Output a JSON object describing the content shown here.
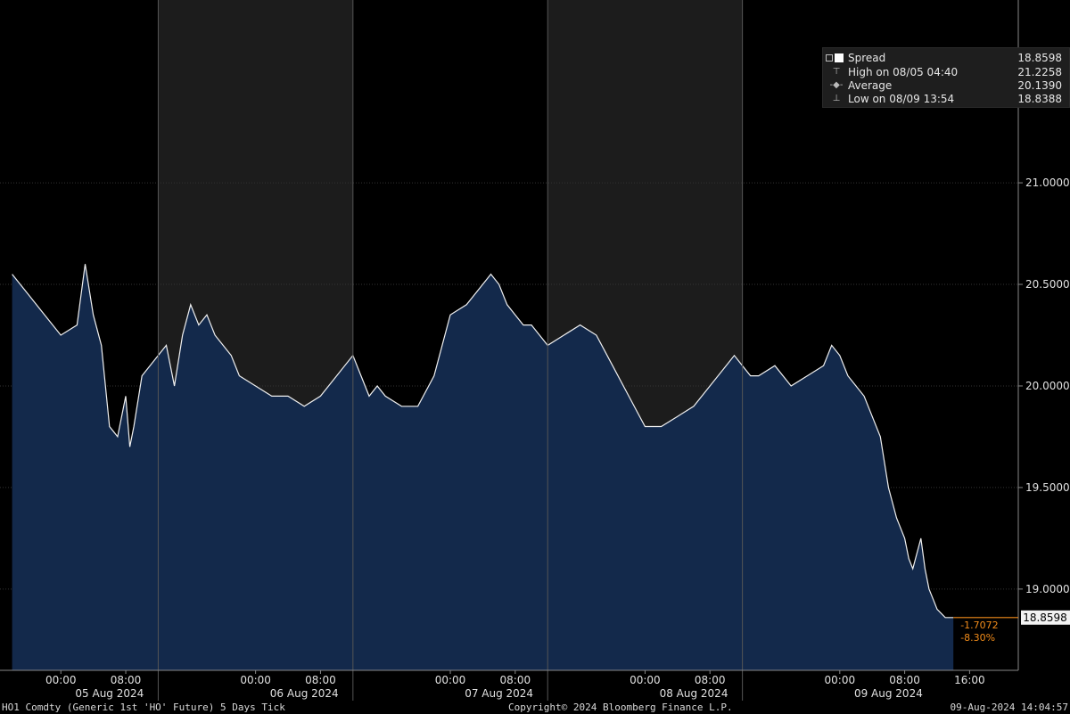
{
  "chart_data": {
    "type": "area",
    "ylim": [
      18.6,
      21.9
    ],
    "y_ticks": [
      "19.0000",
      "19.5000",
      "20.0000",
      "20.5000",
      "21.0000"
    ],
    "y_tick_values": [
      19.0,
      19.5,
      20.0,
      20.5,
      21.0
    ],
    "x_time_labels": [
      "00:00",
      "08:00",
      "00:00",
      "08:00",
      "00:00",
      "08:00",
      "00:00",
      "08:00",
      "00:00",
      "08:00",
      "16:00"
    ],
    "x_time_hours": [
      6,
      14,
      30,
      38,
      54,
      62,
      78,
      86,
      102,
      110,
      118
    ],
    "day_labels": [
      "05 Aug 2024",
      "06 Aug 2024",
      "07 Aug 2024",
      "08 Aug 2024",
      "09 Aug 2024"
    ],
    "day_label_hours": [
      12,
      36,
      60,
      84,
      108
    ],
    "session_breaks_hours": [
      18,
      42,
      66,
      90
    ],
    "series": [
      {
        "name": "Spread",
        "x_hours": [
          0,
          2,
          4,
          6,
          8,
          9,
          10,
          11,
          12,
          13,
          14,
          14.5,
          15,
          16,
          18,
          19,
          20,
          21,
          22,
          23,
          24,
          25,
          26,
          27,
          28,
          30,
          32,
          34,
          36,
          38,
          40,
          42,
          43,
          44,
          45,
          46,
          48,
          50,
          52,
          54,
          56,
          58,
          59,
          60,
          61,
          62,
          63,
          64,
          65,
          66,
          68,
          70,
          72,
          74,
          76,
          78,
          80,
          82,
          84,
          86,
          88,
          89,
          90,
          91,
          92,
          94,
          96,
          98,
          100,
          101,
          102,
          103,
          104,
          105,
          106,
          107,
          108,
          109,
          110,
          110.5,
          111,
          112,
          112.5,
          113,
          113.5,
          114,
          114.5,
          115,
          115.5,
          116
        ],
        "values": [
          20.55,
          20.45,
          20.35,
          20.25,
          20.3,
          20.6,
          20.35,
          20.2,
          19.8,
          19.75,
          19.95,
          19.7,
          19.8,
          20.05,
          20.15,
          20.2,
          20.0,
          20.25,
          20.4,
          20.3,
          20.35,
          20.25,
          20.2,
          20.15,
          20.05,
          20.0,
          19.95,
          19.95,
          19.9,
          19.95,
          20.05,
          20.15,
          20.05,
          19.95,
          20.0,
          19.95,
          19.9,
          19.9,
          20.05,
          20.35,
          20.4,
          20.5,
          20.55,
          20.5,
          20.4,
          20.35,
          20.3,
          20.3,
          20.25,
          20.2,
          20.25,
          20.3,
          20.25,
          20.1,
          19.95,
          19.8,
          19.8,
          19.85,
          19.9,
          20.0,
          20.1,
          20.15,
          20.1,
          20.05,
          20.05,
          20.1,
          20.0,
          20.05,
          20.1,
          20.2,
          20.15,
          20.05,
          20.0,
          19.95,
          19.85,
          19.75,
          19.5,
          19.35,
          19.25,
          19.15,
          19.1,
          19.25,
          19.1,
          19.0,
          18.95,
          18.9,
          18.88,
          18.86,
          18.86,
          18.86
        ],
        "high": {
          "label": "High on 08/05 04:40",
          "value": "21.2258"
        },
        "average": {
          "label": "Average",
          "value": "20.1390"
        },
        "low": {
          "label": "Low on 08/09 13:54",
          "value": "18.8388"
        },
        "last": "18.8598"
      }
    ],
    "change_abs": "-1.7072",
    "change_pct": "-8.30%",
    "colors": {
      "area": "#13294b",
      "area_light": "#1d3354",
      "line": "#f0f0f0",
      "shade": "#1c1c1c",
      "grid": "#333333",
      "last_marker": "#f28c1a",
      "axis_text": "#e0e0e0"
    }
  },
  "legend": {
    "name": "Spread",
    "value": "18.8598",
    "high_label": "High on 08/05 04:40",
    "high_value": "21.2258",
    "avg_label": "Average",
    "avg_value": "20.1390",
    "low_label": "Low on 08/09 13:54",
    "low_value": "18.8388"
  },
  "footer": {
    "left": "HO1 Comdty (Generic 1st 'HO' Future) 5 Days  Tick",
    "center": "Copyright© 2024 Bloomberg Finance L.P.",
    "right": "09-Aug-2024 14:04:57"
  }
}
